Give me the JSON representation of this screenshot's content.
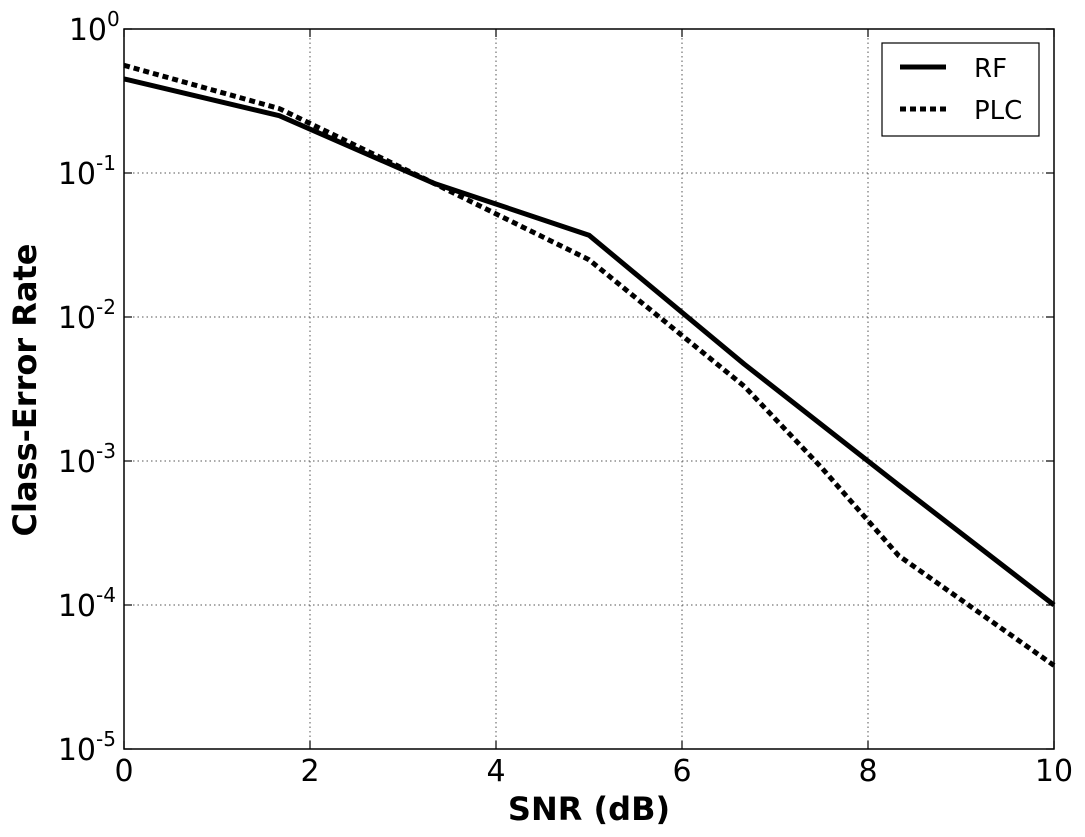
{
  "chart_data": {
    "type": "line",
    "title": "",
    "xlabel": "SNR (dB)",
    "ylabel": "Class-Error Rate",
    "xlim": [
      0,
      10
    ],
    "ylim": [
      1e-05,
      1
    ],
    "yscale": "log",
    "grid": true,
    "legend_position": "top-right",
    "x_ticks": [
      "0",
      "2",
      "4",
      "6",
      "8",
      "10"
    ],
    "y_ticks": [
      {
        "base": "10",
        "exp": "0"
      },
      {
        "base": "10",
        "exp": "-1"
      },
      {
        "base": "10",
        "exp": "-2"
      },
      {
        "base": "10",
        "exp": "-3"
      },
      {
        "base": "10",
        "exp": "-4"
      },
      {
        "base": "10",
        "exp": "-5"
      }
    ],
    "series": [
      {
        "name": "RF",
        "style": "solid",
        "color": "#000000",
        "x": [
          0,
          1.67,
          3.33,
          5.0,
          6.67,
          8.33,
          10.0
        ],
        "y": [
          0.45,
          0.25,
          0.085,
          0.037,
          0.0047,
          0.00068,
          0.0001
        ]
      },
      {
        "name": "PLC",
        "style": "dotted",
        "color": "#000000",
        "x": [
          0,
          1.67,
          3.33,
          5.0,
          6.67,
          7.5,
          8.33,
          10.0
        ],
        "y": [
          0.56,
          0.28,
          0.085,
          0.025,
          0.0033,
          0.0009,
          0.00022,
          3.8e-05
        ]
      }
    ]
  }
}
